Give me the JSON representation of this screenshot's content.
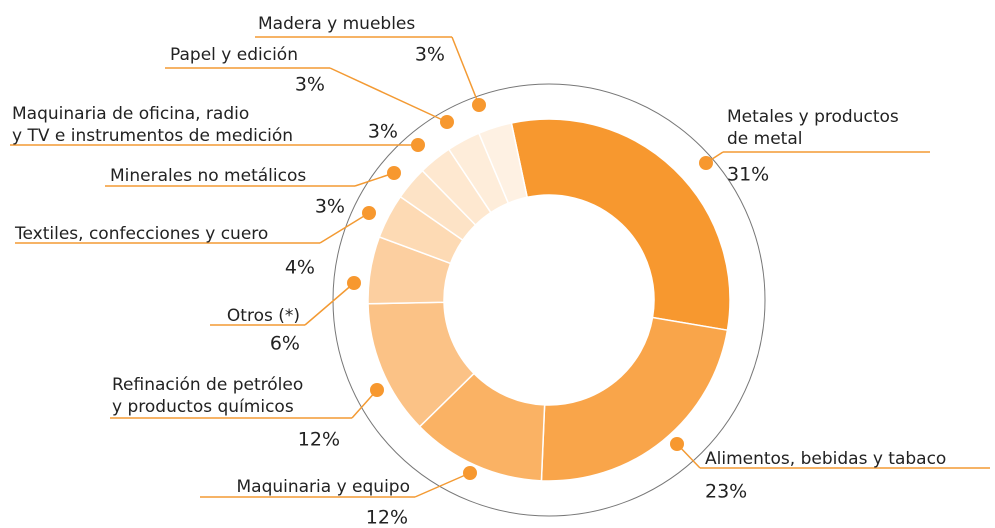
{
  "chart_data": {
    "type": "donut",
    "categories": [
      [
        "Metales y productos",
        "de metal"
      ],
      [
        "Alimentos, bebidas y tabaco"
      ],
      [
        "Maquinaria y equipo"
      ],
      [
        "Refinación de petróleo",
        "y productos químicos"
      ],
      [
        "Otros (*)"
      ],
      [
        "Textiles, confecciones y cuero"
      ],
      [
        "Minerales no metálicos"
      ],
      [
        "Maquinaria de oficina, radio",
        "y TV e instrumentos de medición"
      ],
      [
        "Papel y edición"
      ],
      [
        "Madera y muebles"
      ]
    ],
    "values": [
      31,
      23,
      12,
      12,
      6,
      4,
      3,
      3,
      3,
      3
    ],
    "value_labels": [
      "31%",
      "23%",
      "12%",
      "12%",
      "6%",
      "4%",
      "3%",
      "3%",
      "3%",
      "3%"
    ],
    "colors": [
      "#f7982f",
      "#f9a54a",
      "#fab264",
      "#fbc286",
      "#fccfa0",
      "#fddab4",
      "#fde3c6",
      "#fee8d0",
      "#feedda",
      "#fef1e3"
    ]
  }
}
